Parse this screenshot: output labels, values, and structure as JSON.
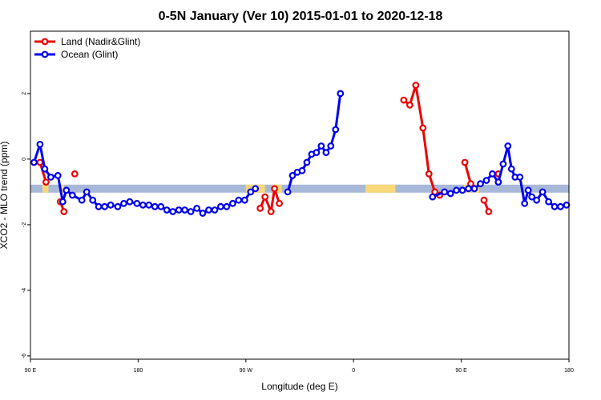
{
  "chart_data": {
    "type": "line",
    "title": "0-5N January (Ver 10)   2015-01-01 to 2020-12-18",
    "xlabel": "Longitude (deg E)",
    "ylabel": "XCO2 - MLO trend (ppm)",
    "x_ticks": [
      {
        "x": 90,
        "label": "90 E"
      },
      {
        "x": 180,
        "label": "180"
      },
      {
        "x": 270,
        "label": "90 W"
      },
      {
        "x": 360,
        "label": "0"
      },
      {
        "x": 450,
        "label": "90 E"
      },
      {
        "x": 540,
        "label": "180"
      }
    ],
    "y_ticks": [
      {
        "y": 2,
        "label": "2"
      },
      {
        "y": 0,
        "label": "0"
      },
      {
        "y": -2,
        "label": "-2"
      },
      {
        "y": -4,
        "label": "-4"
      },
      {
        "y": -6,
        "label": "-6"
      }
    ],
    "xlim": [
      90,
      540
    ],
    "ylim": [
      -6.1,
      3.9
    ],
    "legend": {
      "position": "top-left"
    },
    "series": [
      {
        "name": "Land (Nadir&Glint)",
        "color": "#ee0000",
        "segments": [
          [
            [
              98,
              -0.1
            ],
            [
              103,
              -0.7
            ]
          ],
          [
            [
              115,
              -1.3
            ],
            [
              118,
              -1.6
            ]
          ],
          [
            [
              127,
              -0.45
            ]
          ],
          [
            [
              282,
              -1.5
            ],
            [
              286,
              -1.15
            ],
            [
              291,
              -1.6
            ],
            [
              294,
              -0.9
            ],
            [
              298,
              -1.35
            ]
          ],
          [
            [
              402,
              1.8
            ],
            [
              407,
              1.65
            ],
            [
              412,
              2.25
            ],
            [
              418,
              0.95
            ],
            [
              423,
              -0.45
            ],
            [
              428,
              -1.0
            ],
            [
              432,
              -1.1
            ]
          ],
          [
            [
              453,
              -0.1
            ],
            [
              458,
              -0.75
            ]
          ],
          [
            [
              469,
              -1.25
            ],
            [
              473,
              -1.6
            ]
          ],
          [
            [
              481,
              -0.45
            ]
          ]
        ]
      },
      {
        "name": "Ocean (Glint)",
        "color": "#0000ee",
        "segments": [
          [
            [
              93,
              -0.1
            ],
            [
              98,
              0.45
            ],
            [
              102,
              -0.3
            ],
            [
              107,
              -0.55
            ],
            [
              113,
              -0.5
            ],
            [
              117,
              -1.3
            ],
            [
              120,
              -0.95
            ],
            [
              125,
              -1.1
            ],
            [
              133,
              -1.25
            ],
            [
              137,
              -1.0
            ],
            [
              142,
              -1.25
            ],
            [
              147,
              -1.45
            ],
            [
              152,
              -1.45
            ],
            [
              157,
              -1.4
            ],
            [
              163,
              -1.45
            ],
            [
              168,
              -1.35
            ],
            [
              173,
              -1.3
            ],
            [
              179,
              -1.35
            ],
            [
              184,
              -1.4
            ],
            [
              189,
              -1.4
            ],
            [
              194,
              -1.45
            ],
            [
              199,
              -1.45
            ],
            [
              204,
              -1.55
            ],
            [
              209,
              -1.6
            ],
            [
              214,
              -1.55
            ],
            [
              219,
              -1.55
            ],
            [
              224,
              -1.6
            ],
            [
              229,
              -1.5
            ],
            [
              234,
              -1.65
            ],
            [
              239,
              -1.55
            ],
            [
              244,
              -1.55
            ],
            [
              249,
              -1.45
            ],
            [
              254,
              -1.45
            ],
            [
              259,
              -1.35
            ],
            [
              264,
              -1.25
            ],
            [
              269,
              -1.25
            ],
            [
              274,
              -1.0
            ],
            [
              278,
              -0.9
            ]
          ],
          [
            [
              305,
              -1.0
            ],
            [
              309,
              -0.5
            ],
            [
              313,
              -0.4
            ],
            [
              317,
              -0.35
            ],
            [
              321,
              -0.1
            ],
            [
              325,
              0.15
            ],
            [
              329,
              0.2
            ],
            [
              333,
              0.4
            ],
            [
              337,
              0.2
            ],
            [
              341,
              0.4
            ],
            [
              345,
              0.9
            ],
            [
              349,
              2.0
            ]
          ],
          [
            [
              426,
              -1.15
            ],
            [
              436,
              -1.0
            ],
            [
              441,
              -1.05
            ],
            [
              446,
              -0.95
            ],
            [
              451,
              -0.95
            ],
            [
              456,
              -0.9
            ],
            [
              461,
              -0.9
            ],
            [
              466,
              -0.75
            ],
            [
              471,
              -0.65
            ],
            [
              476,
              -0.45
            ],
            [
              481,
              -0.7
            ],
            [
              485,
              -0.15
            ],
            [
              489,
              0.4
            ],
            [
              492,
              -0.3
            ],
            [
              495,
              -0.55
            ],
            [
              499,
              -0.55
            ],
            [
              503,
              -1.35
            ],
            [
              506,
              -0.95
            ],
            [
              509,
              -1.15
            ],
            [
              513,
              -1.25
            ],
            [
              518,
              -1.0
            ],
            [
              523,
              -1.3
            ],
            [
              528,
              -1.45
            ],
            [
              533,
              -1.45
            ],
            [
              538,
              -1.4
            ]
          ]
        ]
      }
    ],
    "background_band": {
      "y": -0.9,
      "ocean_color": "#a8b8d8",
      "land_color": "#f8d878",
      "land_ranges": [
        [
          100,
          105
        ],
        [
          115,
          118
        ],
        [
          270,
          286
        ],
        [
          292,
          300
        ],
        [
          370,
          395
        ],
        [
          452,
          458
        ],
        [
          462,
          465
        ]
      ]
    }
  }
}
